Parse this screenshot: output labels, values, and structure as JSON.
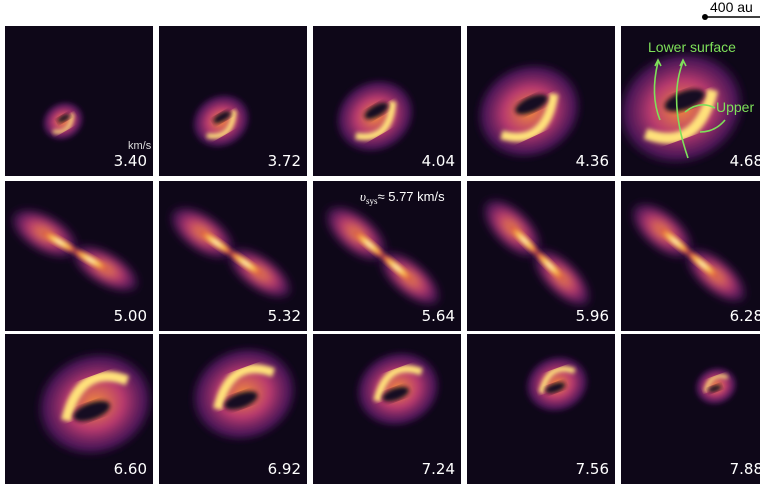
{
  "scale_bar": {
    "label": "400 au"
  },
  "units": "km/s",
  "systemic_velocity": {
    "symbol": "υ",
    "subscript": "sys",
    "text": "≈ 5.77 km/s"
  },
  "annotations": {
    "lower": "Lower surface",
    "upper": "Upper"
  },
  "panels": [
    {
      "velocity": "3.40"
    },
    {
      "velocity": "3.72"
    },
    {
      "velocity": "4.04"
    },
    {
      "velocity": "4.36"
    },
    {
      "velocity": "4.68"
    },
    {
      "velocity": "5.00"
    },
    {
      "velocity": "5.32"
    },
    {
      "velocity": "5.64"
    },
    {
      "velocity": "5.96"
    },
    {
      "velocity": "6.28"
    },
    {
      "velocity": "6.60"
    },
    {
      "velocity": "6.92"
    },
    {
      "velocity": "7.24"
    },
    {
      "velocity": "7.56"
    },
    {
      "velocity": "7.88"
    }
  ]
}
